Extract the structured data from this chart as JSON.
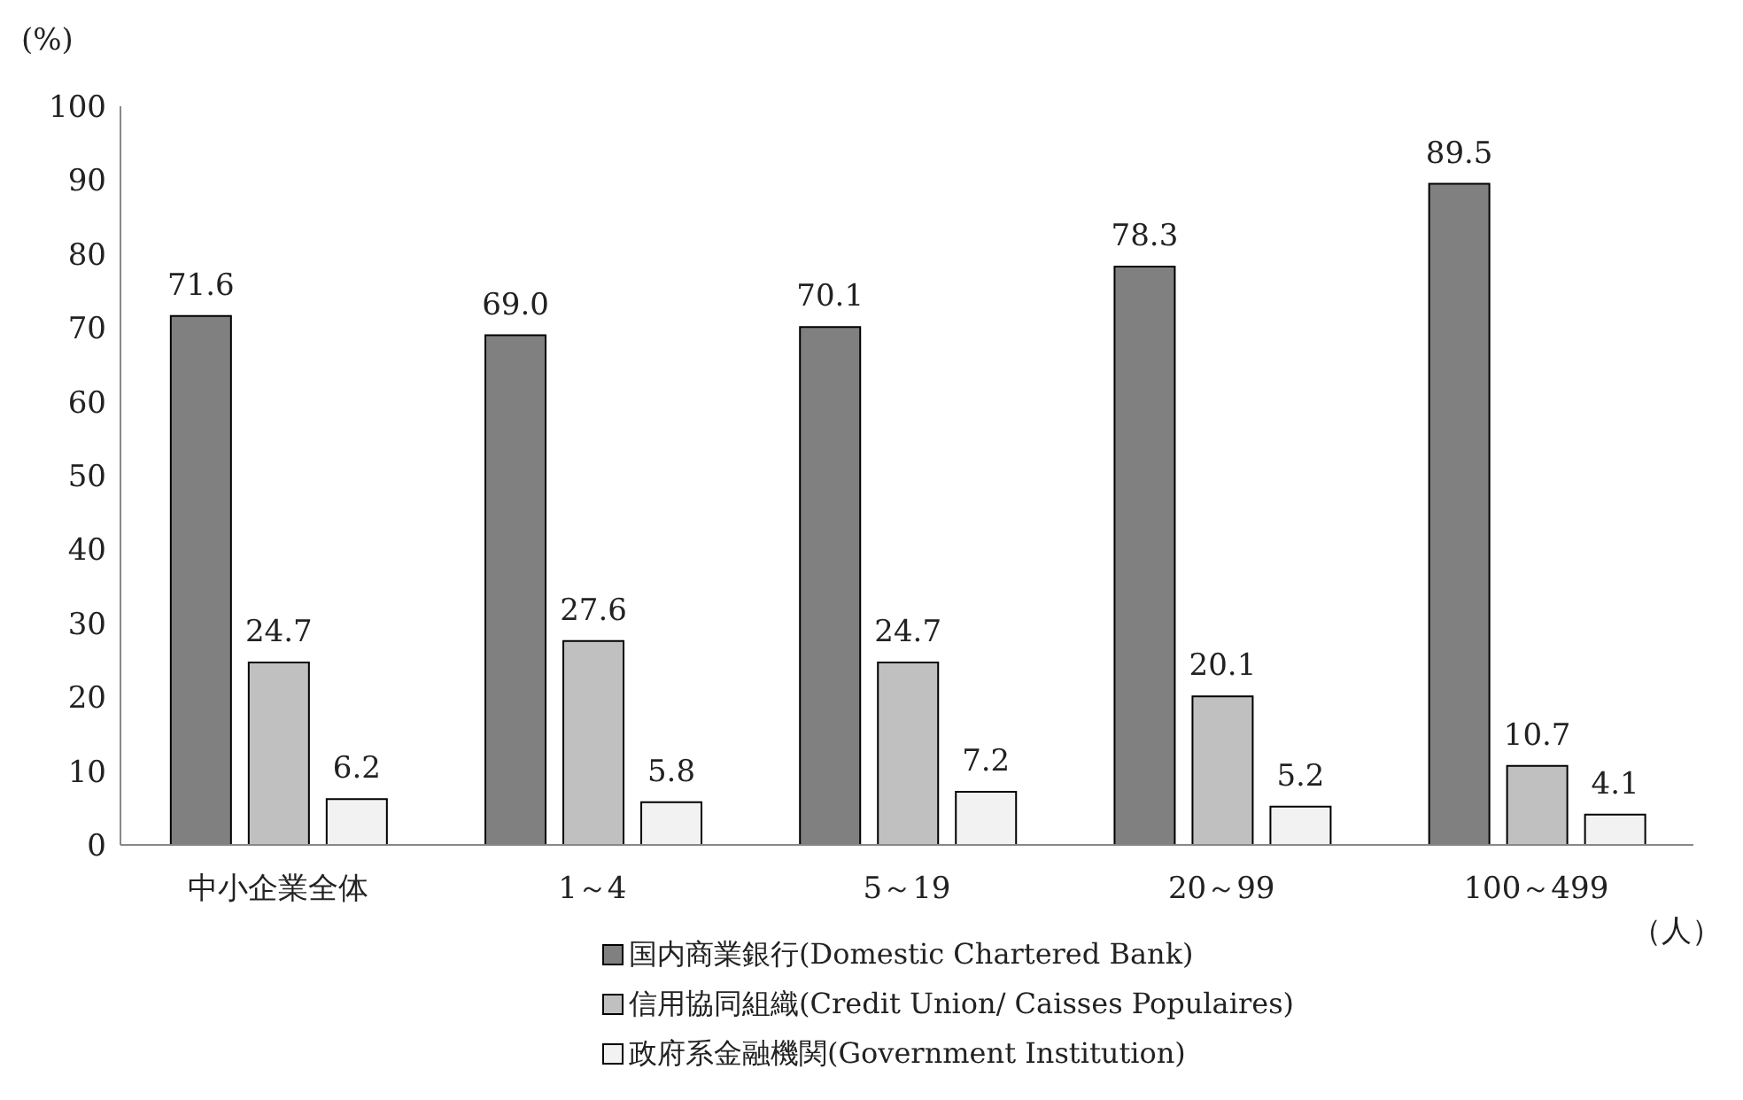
{
  "chart_data": {
    "type": "bar",
    "xlabel": "（人）",
    "ylabel": "(%)",
    "categories": [
      "中小企業全体",
      "1～4",
      "5～19",
      "20～99",
      "100～499"
    ],
    "series": [
      {
        "name": "国内商業銀行(Domestic Chartered Bank)",
        "color": "#808080",
        "values": [
          71.6,
          69.0,
          70.1,
          78.3,
          89.5
        ],
        "value_labels": [
          "71.6",
          "69.0",
          "70.1",
          "78.3",
          "89.5"
        ]
      },
      {
        "name": "信用協同組織(Credit Union/ Caisses Populaires)",
        "color": "#c0c0c0",
        "values": [
          24.7,
          27.6,
          24.7,
          20.1,
          10.7
        ],
        "value_labels": [
          "24.7",
          "27.6",
          "24.7",
          "20.1",
          "10.7"
        ]
      },
      {
        "name": "政府系金融機関(Government Institution)",
        "color": "#f2f2f2",
        "values": [
          6.2,
          5.8,
          7.2,
          5.2,
          4.1
        ],
        "value_labels": [
          "6.2",
          "5.8",
          "7.2",
          "5.2",
          "4.1"
        ]
      }
    ],
    "ylim": [
      0,
      100
    ],
    "yticks": [
      0,
      10,
      20,
      30,
      40,
      50,
      60,
      70,
      80,
      90,
      100
    ],
    "legend": "bottom"
  }
}
